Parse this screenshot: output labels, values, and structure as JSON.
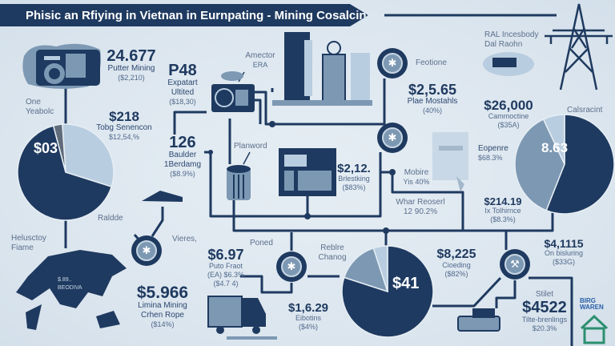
{
  "title": "Phisic an Rfiying in Vietnan in Eurnpating - Mining Cosalciny Costs",
  "colors": {
    "navy": "#1f3a60",
    "mid": "#7d98b3",
    "light": "#b9cde0",
    "background": "#dfe8ef"
  },
  "items": {
    "putter": {
      "value": "24.677",
      "label": "Putter Mining",
      "sub": "($2,210)"
    },
    "p48": {
      "value": "P48",
      "label1": "Expatart",
      "label2": "Ultited",
      "sub": "($18,30)"
    },
    "amector": {
      "label1": "Amector",
      "label2": "ERA"
    },
    "feotione": {
      "label": "Feotione"
    },
    "plae": {
      "value": "$2,5.65",
      "label": "Plae Mostahls",
      "sub": "(40%)"
    },
    "ral": {
      "label1": "RAL Incesbody",
      "label2": "Dal Raohn"
    },
    "cammoctine": {
      "value": "$26,000",
      "label": "Cammoctine",
      "sub": "($35A)"
    },
    "one": {
      "label1": "One",
      "label2": "Yeabolc"
    },
    "tobg": {
      "value": "$218",
      "label": "Tobg Senencon",
      "sub": "$12,54,%"
    },
    "baulder": {
      "value": "126",
      "label1": "Baulder",
      "label2": "1Berdamg",
      "sub": "($8.9%)"
    },
    "planword": {
      "label": "Planword"
    },
    "brlestking": {
      "value": "$2,12.",
      "label": "Brlestking",
      "sub": "($83%)"
    },
    "mobire": {
      "label": "Mobire",
      "sub": "Yis 40%"
    },
    "eopenre": {
      "label": "Eopenre",
      "sub": "$68.3%"
    },
    "whar": {
      "label": "Whar Reoserl",
      "sub": "12 90.2%"
    },
    "tolhirnce": {
      "value": "$214.19",
      "label": "Ix Tolhirnce",
      "sub": "($8.3%)"
    },
    "raldde": {
      "label": "Raldde"
    },
    "helusctoy": {
      "label1": "Helusctoy",
      "label2": "Fiame"
    },
    "map": {
      "label1": "$.89..",
      "label2": "BEODIVA"
    },
    "vieres": {
      "label": "Vieres,"
    },
    "poned": {
      "label": "Poned"
    },
    "puto": {
      "value": "$6.97",
      "label": "Puto Fraot",
      "sub1": "(EA) $6.3%",
      "sub2": "($4.7 4)"
    },
    "limina": {
      "value": "$5.966",
      "label1": "Limina Mining",
      "label2": "Crhen Rope",
      "sub": "($14%)"
    },
    "eibotins": {
      "value": "$1,6.29",
      "label": "Eibotins",
      "sub": "($4%)"
    },
    "reblre": {
      "label1": "Reblre",
      "label2": "Chanog"
    },
    "cioeding": {
      "value": "$8,225",
      "label": "Cioeding",
      "sub": "($82%)"
    },
    "bisluring": {
      "value": "$4,1115",
      "label": "On bisluring",
      "sub": "($33G)"
    },
    "stilet": {
      "label": "Stilet",
      "value": "$4522",
      "label2": "Tilte-brenlings",
      "sub": "$20.3%"
    },
    "logo": {
      "text1": "BIRG",
      "text2": "WAREN"
    }
  },
  "pies": [
    {
      "id": "left",
      "center_label": "$03",
      "calsracint": "",
      "slices": [
        {
          "color": "light",
          "share": 0.31
        },
        {
          "color": "navy",
          "share": 0.66
        },
        {
          "color": "gray",
          "share": 0.03
        }
      ]
    },
    {
      "id": "right",
      "center_label": "8.63",
      "title": "Calsracint",
      "slices": [
        {
          "color": "navy",
          "share": 0.56
        },
        {
          "color": "mid",
          "share": 0.37
        },
        {
          "color": "light",
          "share": 0.07
        }
      ]
    },
    {
      "id": "center",
      "center_label": "$41",
      "slices": [
        {
          "color": "navy",
          "share": 0.8
        },
        {
          "color": "mid",
          "share": 0.15
        },
        {
          "color": "light",
          "share": 0.05
        }
      ]
    }
  ]
}
